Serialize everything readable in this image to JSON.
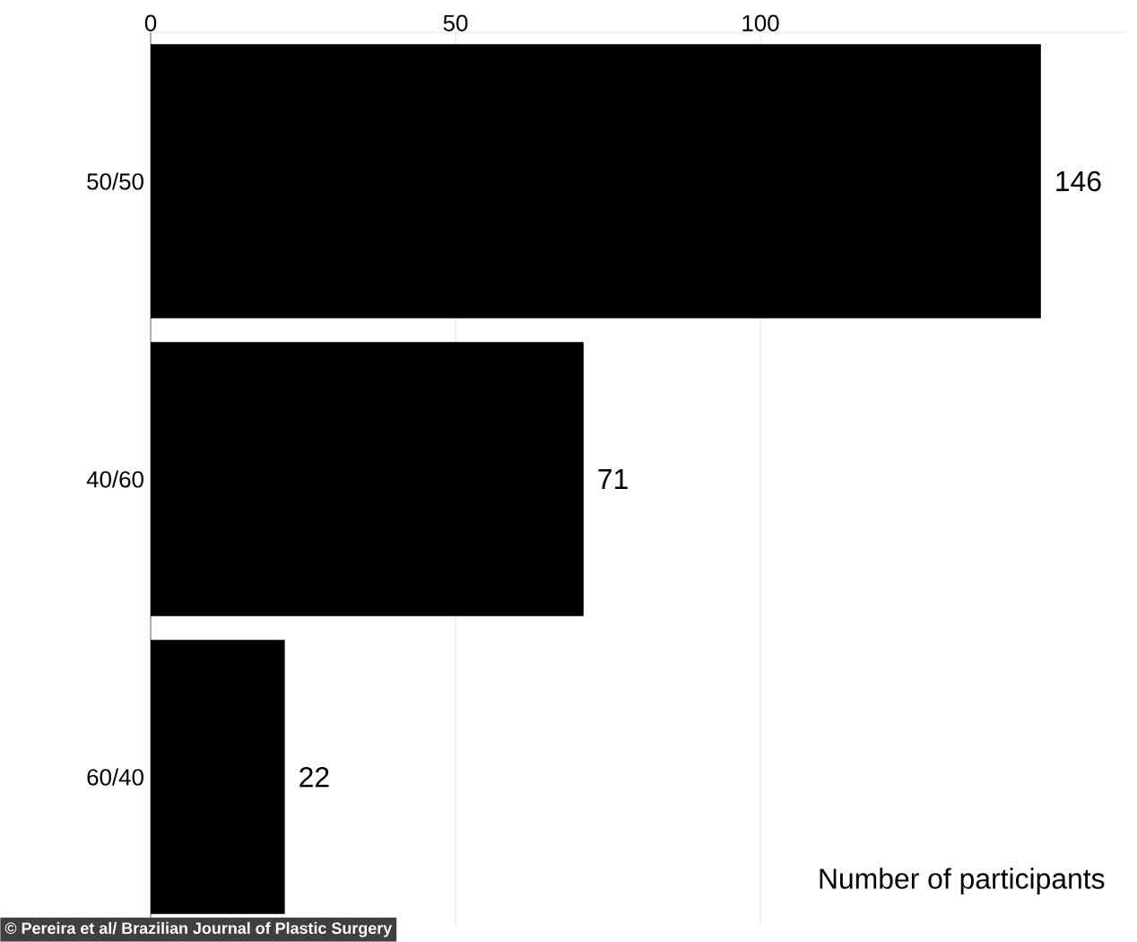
{
  "chart_data": {
    "type": "bar",
    "orientation": "horizontal",
    "categories": [
      "50/50",
      "40/60",
      "60/40"
    ],
    "values": [
      146,
      71,
      22
    ],
    "color": "#000000",
    "xlim": [
      0,
      160
    ],
    "xticks": [
      0,
      50,
      100
    ],
    "xlabel": "Number of participants",
    "grid": "x",
    "data_labels": true,
    "annotations": [
      "© Pereira et al/ Brazilian Journal of Plastic Surgery"
    ]
  }
}
